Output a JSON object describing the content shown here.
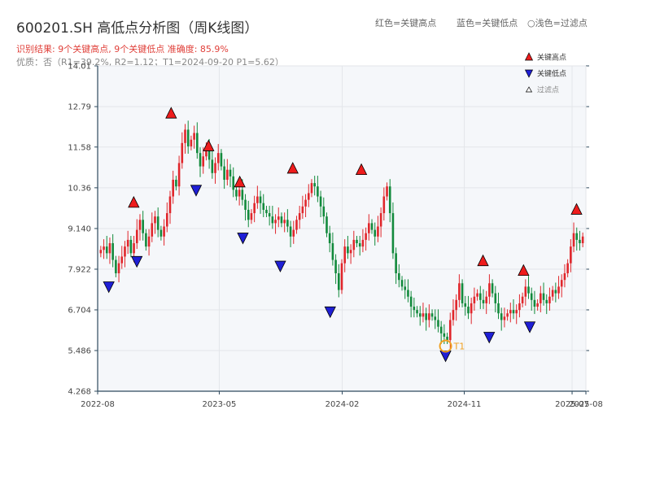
{
  "page": {
    "title": "600201.SH 高低点分析图（周K线图）",
    "result_text": "识别结果: 9个关键高点, 9个关键低点   准确度: 85.9%",
    "quality_text": "优质：否（R1=39.2%, R2=1.12；T1=2024-09-20 P1=5.62）",
    "legend_top": {
      "red": "红色=关键高点",
      "blue": "蓝色=关键低点",
      "light": "○浅色=过滤点"
    }
  },
  "colors": {
    "up": "#e0262b",
    "down": "#128a3c",
    "high_marker": "#ee1c1c",
    "low_marker": "#1f1fd6",
    "t1_circle": "#f0a020",
    "plot_bg": "#f5f7fa",
    "grid": "#e3e6ea",
    "axis": "#2f4a5e"
  },
  "chart_data": {
    "type": "candlestick",
    "title": "600201.SH 高低点分析图（周K线图）",
    "xlabel": "",
    "ylabel": "",
    "x_start": "2022-08-01",
    "x_end": "2025-08-01",
    "y_ticks": [
      4.268,
      5.486,
      6.704,
      7.922,
      9.14,
      10.36,
      11.58,
      12.79,
      14.01
    ],
    "y_tick_labels": [
      "4.268",
      "5.486",
      "6.704",
      "7.922",
      "9.140",
      "10.36",
      "11.58",
      "12.79",
      "14.01"
    ],
    "ylim": [
      4.268,
      14.01
    ],
    "x_ticks": [
      "2022-08",
      "2023-05",
      "2024-02",
      "2024-11",
      "2025-07",
      "2025-08"
    ],
    "grid": true,
    "legend": {
      "position": "top-right",
      "items": [
        {
          "label": "关键高点",
          "marker": "up-triangle",
          "color": "#ee1c1c"
        },
        {
          "label": "关键低点",
          "marker": "down-triangle",
          "color": "#1f1fd6"
        },
        {
          "label": "过滤点",
          "marker": "small-triangle",
          "color": "#ffffff",
          "muted": true
        }
      ]
    },
    "key_highs": [
      {
        "date": "2022-10-21",
        "price": 9.63
      },
      {
        "date": "2023-01-13",
        "price": 12.3
      },
      {
        "date": "2023-04-07",
        "price": 11.32
      },
      {
        "date": "2023-06-16",
        "price": 10.24
      },
      {
        "date": "2023-10-13",
        "price": 10.65
      },
      {
        "date": "2024-03-15",
        "price": 10.61
      },
      {
        "date": "2024-12-13",
        "price": 7.88
      },
      {
        "date": "2025-03-14",
        "price": 7.59
      },
      {
        "date": "2025-07-11",
        "price": 9.42
      }
    ],
    "key_lows": [
      {
        "date": "2022-08-26",
        "price": 7.69
      },
      {
        "date": "2022-10-28",
        "price": 8.45
      },
      {
        "date": "2023-03-10",
        "price": 10.58
      },
      {
        "date": "2023-06-23",
        "price": 9.15
      },
      {
        "date": "2023-09-15",
        "price": 8.31
      },
      {
        "date": "2024-01-05",
        "price": 6.94
      },
      {
        "date": "2024-09-20",
        "price": 5.62
      },
      {
        "date": "2024-12-27",
        "price": 6.18
      },
      {
        "date": "2025-03-28",
        "price": 6.49
      }
    ],
    "annotation": {
      "label": "T1",
      "date": "2024-09-20",
      "price": 5.62
    },
    "weekly_close": [
      8.5,
      8.6,
      8.4,
      8.7,
      8.2,
      7.8,
      8.1,
      8.3,
      8.6,
      8.8,
      8.4,
      8.7,
      9.1,
      9.4,
      9.0,
      8.6,
      8.9,
      9.3,
      9.5,
      9.1,
      8.9,
      9.2,
      9.6,
      10.1,
      10.6,
      10.4,
      11.1,
      11.7,
      12.1,
      11.6,
      11.8,
      12.0,
      11.4,
      11.0,
      11.3,
      11.6,
      11.2,
      10.8,
      11.1,
      11.4,
      11.0,
      10.6,
      10.9,
      10.7,
      10.3,
      10.1,
      10.3,
      10.0,
      9.7,
      9.4,
      9.6,
      9.9,
      10.1,
      9.9,
      9.7,
      9.6,
      9.5,
      9.3,
      9.4,
      9.5,
      9.3,
      9.4,
      9.2,
      8.9,
      9.1,
      9.4,
      9.6,
      9.8,
      10.0,
      10.2,
      10.5,
      10.4,
      10.1,
      9.8,
      9.5,
      9.0,
      8.7,
      8.2,
      7.8,
      7.3,
      8.1,
      8.6,
      8.4,
      8.5,
      8.8,
      8.7,
      8.6,
      8.8,
      9.0,
      9.3,
      9.1,
      8.9,
      9.2,
      9.6,
      10.1,
      10.4,
      9.6,
      8.4,
      7.8,
      7.6,
      7.4,
      7.3,
      7.1,
      6.8,
      6.7,
      6.6,
      6.5,
      6.6,
      6.4,
      6.6,
      6.5,
      6.4,
      6.2,
      6.0,
      5.9,
      5.8,
      6.4,
      6.7,
      7.0,
      7.5,
      6.9,
      6.8,
      6.6,
      6.9,
      7.1,
      7.2,
      7.0,
      6.9,
      7.1,
      7.5,
      7.2,
      6.9,
      6.6,
      6.4,
      6.5,
      6.6,
      6.7,
      6.6,
      6.7,
      6.9,
      7.1,
      7.4,
      7.2,
      7.0,
      6.8,
      6.9,
      7.2,
      7.0,
      6.9,
      7.1,
      7.3,
      7.2,
      7.4,
      7.6,
      7.8,
      8.1,
      8.6,
      9.0,
      8.8,
      8.7,
      8.9
    ]
  }
}
